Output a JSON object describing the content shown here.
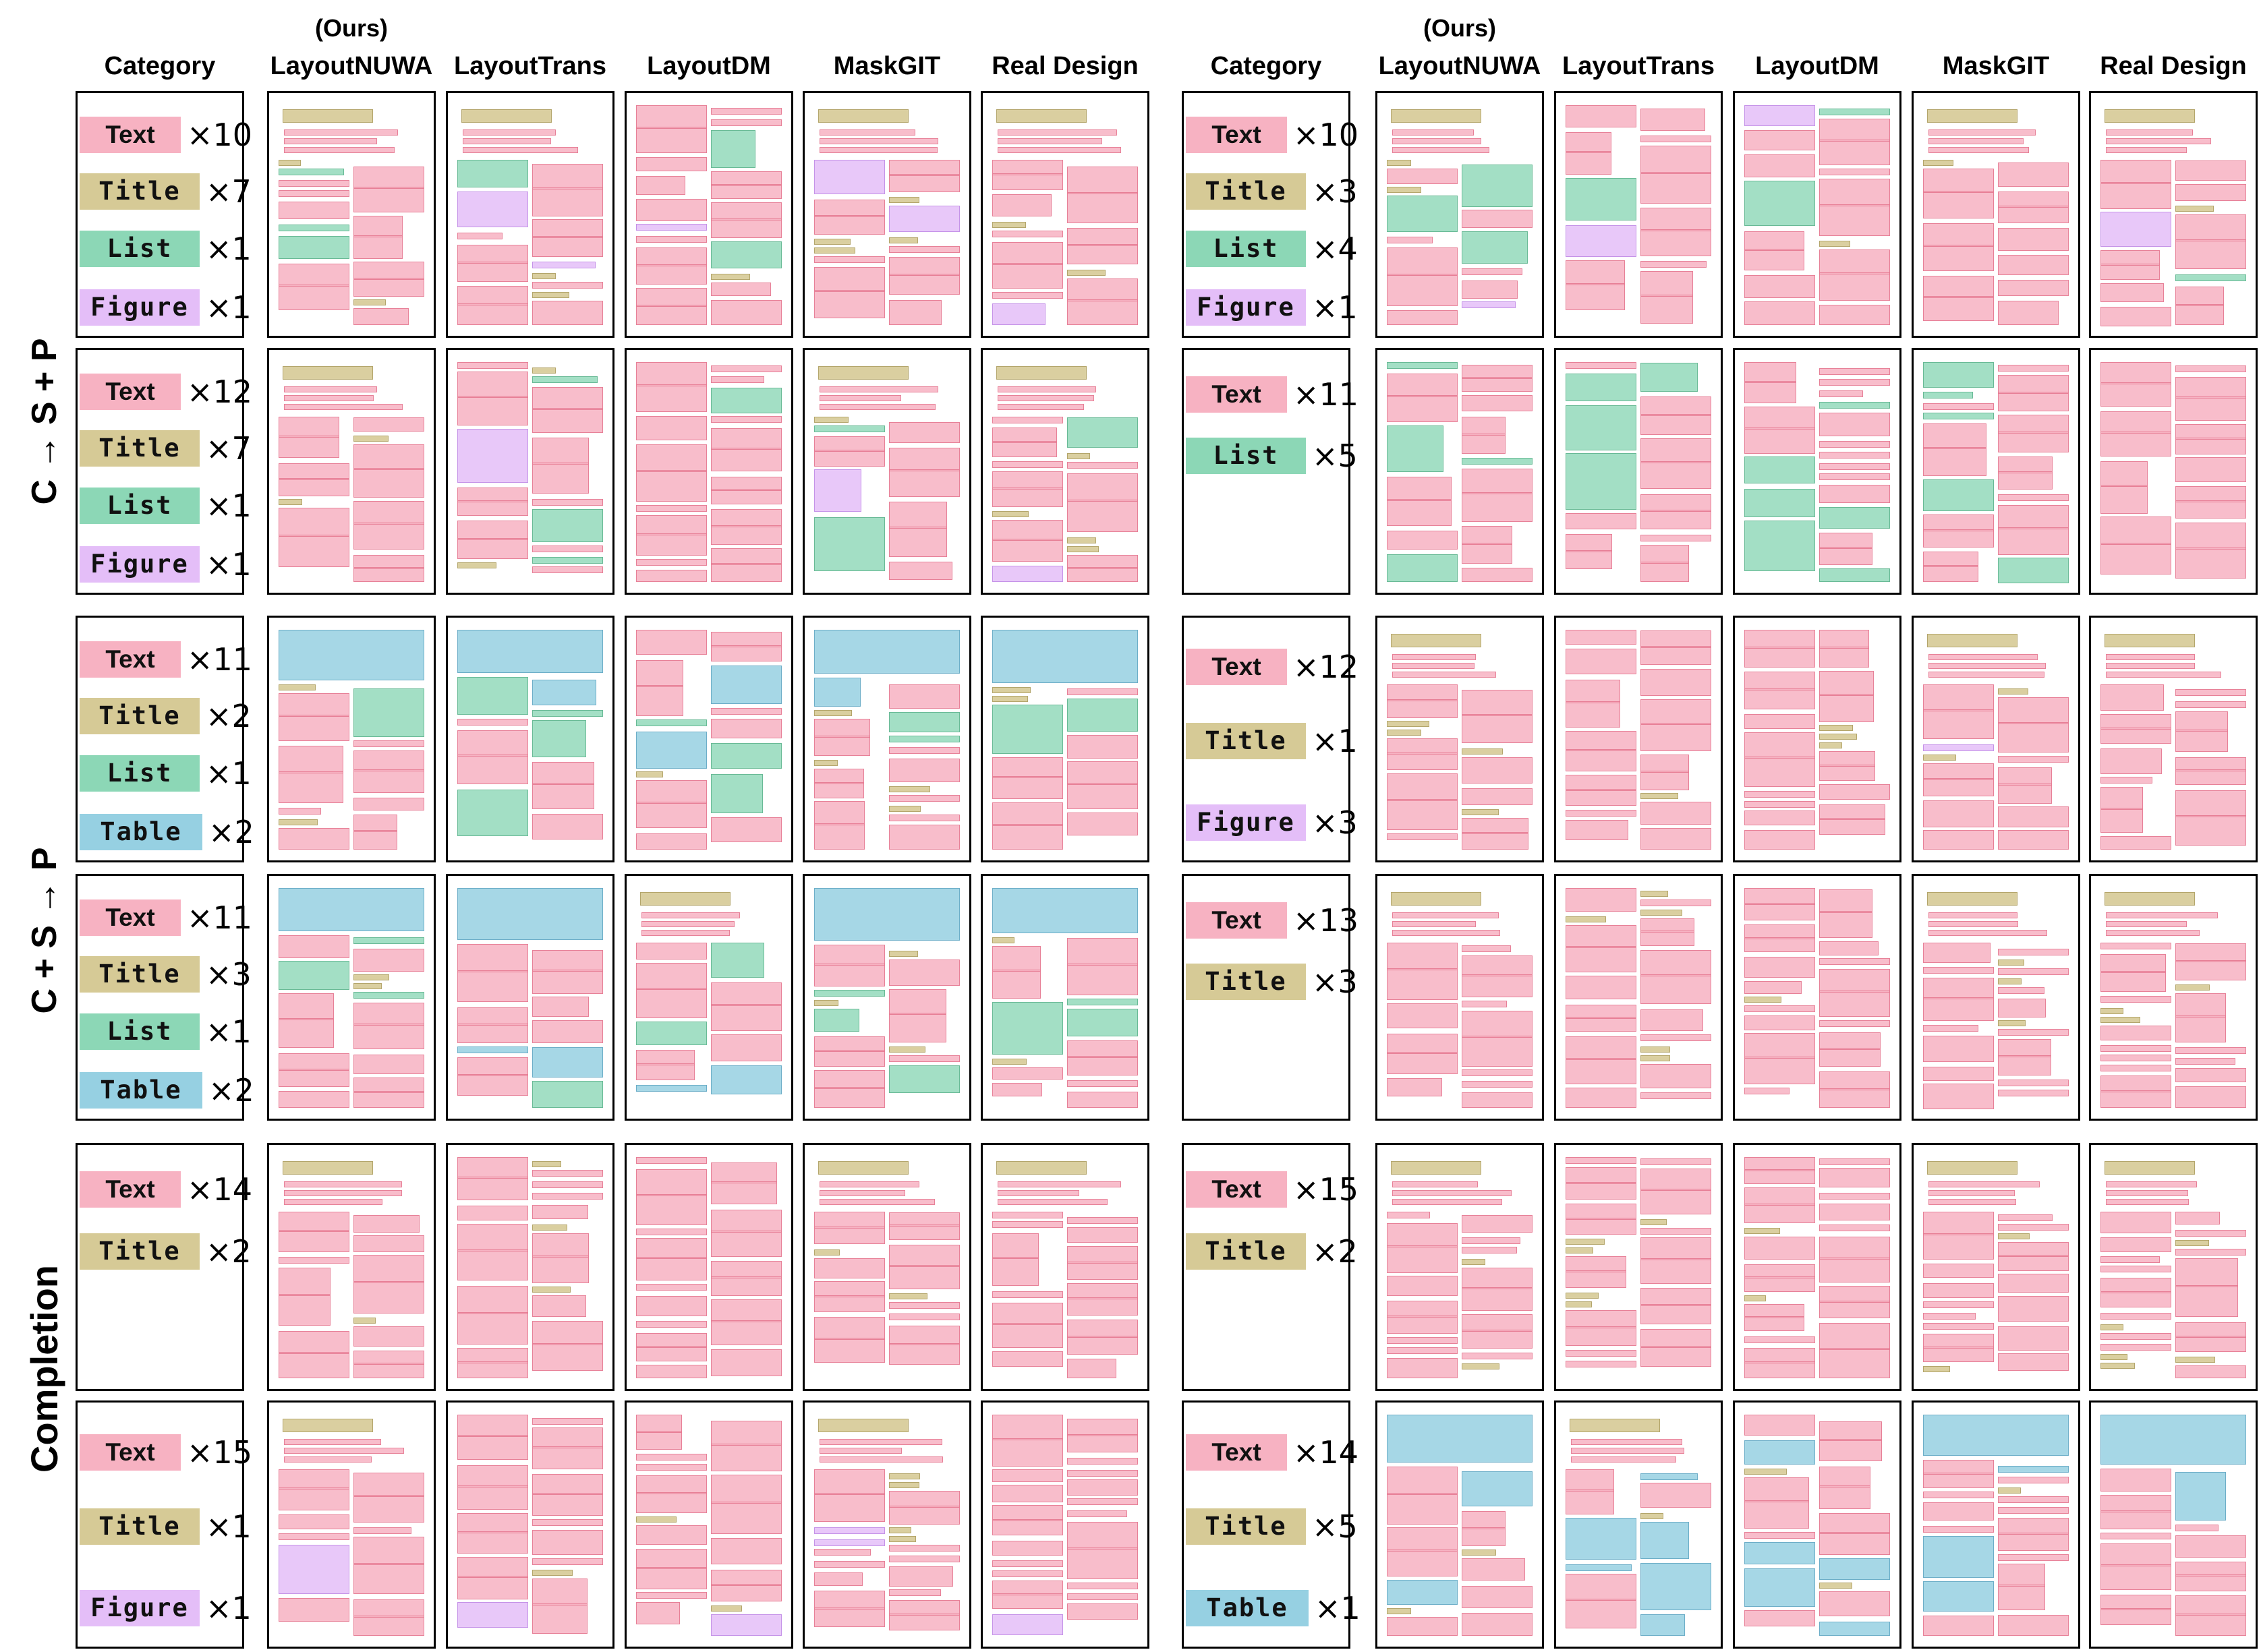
{
  "header": {
    "ours_label": "(Ours)",
    "columns": [
      "Category",
      "LayoutNUWA",
      "LayoutTrans",
      "LayoutDM",
      "MaskGIT",
      "Real Design"
    ]
  },
  "row_groups": [
    "C → S + P",
    "C + S → P",
    "Completion"
  ],
  "legend_colors": {
    "Text": "#f7b2c2",
    "Title": "#d6ca96",
    "List": "#8cd7b6",
    "Figure": "#e4bef8",
    "Table": "#96d0e2"
  },
  "panels": [
    [
      {
        "label": "Text",
        "count": "×10"
      },
      {
        "label": "Title",
        "count": "×7"
      },
      {
        "label": "List",
        "count": "×1"
      },
      {
        "label": "Figure",
        "count": "×1"
      }
    ],
    [
      {
        "label": "Text",
        "count": "×10"
      },
      {
        "label": "Title",
        "count": "×3"
      },
      {
        "label": "List",
        "count": "×4"
      },
      {
        "label": "Figure",
        "count": "×1"
      }
    ],
    [
      {
        "label": "Text",
        "count": "×12"
      },
      {
        "label": "Title",
        "count": "×7"
      },
      {
        "label": "List",
        "count": "×1"
      },
      {
        "label": "Figure",
        "count": "×1"
      }
    ],
    [
      {
        "label": "Text",
        "count": "×11"
      },
      {
        "label": "List",
        "count": "×5"
      }
    ],
    [
      {
        "label": "Text",
        "count": "×11"
      },
      {
        "label": "Title",
        "count": "×2"
      },
      {
        "label": "List",
        "count": "×1"
      },
      {
        "label": "Table",
        "count": "×2"
      }
    ],
    [
      {
        "label": "Text",
        "count": "×12"
      },
      {
        "label": "Title",
        "count": "×1"
      },
      {
        "label": "Figure",
        "count": "×3"
      }
    ],
    [
      {
        "label": "Text",
        "count": "×11"
      },
      {
        "label": "Title",
        "count": "×3"
      },
      {
        "label": "List",
        "count": "×1"
      },
      {
        "label": "Table",
        "count": "×2"
      }
    ],
    [
      {
        "label": "Text",
        "count": "×13"
      },
      {
        "label": "Title",
        "count": "×3"
      }
    ],
    [
      {
        "label": "Text",
        "count": "×14"
      },
      {
        "label": "Title",
        "count": "×2"
      }
    ],
    [
      {
        "label": "Text",
        "count": "×15"
      },
      {
        "label": "Title",
        "count": "×2"
      }
    ],
    [
      {
        "label": "Text",
        "count": "×15"
      },
      {
        "label": "Title",
        "count": "×1"
      },
      {
        "label": "Figure",
        "count": "×1"
      }
    ],
    [
      {
        "label": "Text",
        "count": "×14"
      },
      {
        "label": "Title",
        "count": "×5"
      },
      {
        "label": "Table",
        "count": "×1"
      }
    ]
  ]
}
